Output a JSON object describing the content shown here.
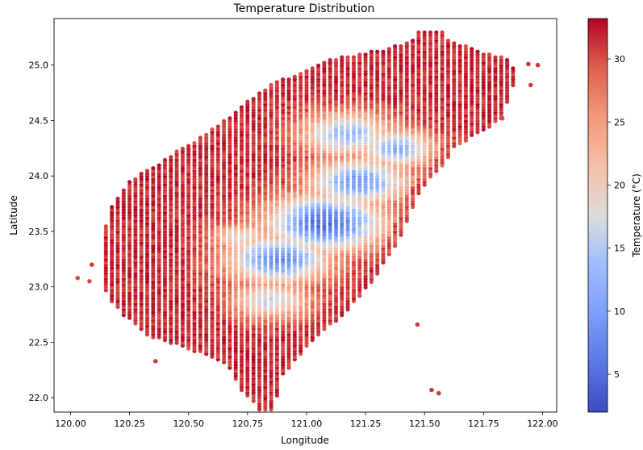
{
  "chart_data": {
    "type": "scatter",
    "title": "Temperature Distribution",
    "xlabel": "Longitude",
    "ylabel": "Latitude",
    "xlim": [
      119.93,
      122.06
    ],
    "ylim": [
      21.87,
      25.42
    ],
    "xticks": [
      120.0,
      120.25,
      120.5,
      120.75,
      121.0,
      121.25,
      121.5,
      121.75,
      122.0
    ],
    "xtick_labels": [
      "120.00",
      "120.25",
      "120.50",
      "120.75",
      "121.00",
      "121.25",
      "121.50",
      "121.75",
      "122.00"
    ],
    "yticks": [
      22.0,
      22.5,
      23.0,
      23.5,
      24.0,
      24.5,
      25.0
    ],
    "ytick_labels": [
      "22.0",
      "22.5",
      "23.0",
      "23.5",
      "24.0",
      "24.5",
      "25.0"
    ],
    "grid": false,
    "colormap": "coolwarm",
    "colorbar": {
      "label": "Temperature (°C)",
      "min": 2,
      "max": 33.2,
      "ticks": [
        5,
        10,
        15,
        20,
        25,
        30
      ],
      "tick_labels": [
        "5",
        "10",
        "15",
        "20",
        "25",
        "30"
      ]
    },
    "grid_step": {
      "lon": 0.025,
      "lat": 0.025
    },
    "extent_notes": "gridded points over Taiwan; temperature coolest (~4-12°C) along central mountain ridge, ~30-33°C on western and coastal lowlands",
    "land_rows": [
      {
        "lat": 21.95,
        "lon_min": 120.78,
        "lon_max": 120.87
      },
      {
        "lat": 22.05,
        "lon_min": 120.73,
        "lon_max": 120.88
      },
      {
        "lat": 22.15,
        "lon_min": 120.7,
        "lon_max": 120.88
      },
      {
        "lat": 22.25,
        "lon_min": 120.68,
        "lon_max": 120.92
      },
      {
        "lat": 22.35,
        "lon_min": 120.62,
        "lon_max": 120.96
      },
      {
        "lat": 22.45,
        "lon_min": 120.48,
        "lon_max": 121.0
      },
      {
        "lat": 22.55,
        "lon_min": 120.33,
        "lon_max": 121.04
      },
      {
        "lat": 22.65,
        "lon_min": 120.28,
        "lon_max": 121.1
      },
      {
        "lat": 22.75,
        "lon_min": 120.22,
        "lon_max": 121.16
      },
      {
        "lat": 22.85,
        "lon_min": 120.18,
        "lon_max": 121.2
      },
      {
        "lat": 22.95,
        "lon_min": 120.15,
        "lon_max": 121.24
      },
      {
        "lat": 23.05,
        "lon_min": 120.13,
        "lon_max": 121.28
      },
      {
        "lat": 23.15,
        "lon_min": 120.13,
        "lon_max": 121.31
      },
      {
        "lat": 23.25,
        "lon_min": 120.13,
        "lon_max": 121.34
      },
      {
        "lat": 23.35,
        "lon_min": 120.14,
        "lon_max": 121.37
      },
      {
        "lat": 23.45,
        "lon_min": 120.15,
        "lon_max": 121.4
      },
      {
        "lat": 23.55,
        "lon_min": 120.15,
        "lon_max": 121.42
      },
      {
        "lat": 23.65,
        "lon_min": 120.16,
        "lon_max": 121.44
      },
      {
        "lat": 23.75,
        "lon_min": 120.18,
        "lon_max": 121.46
      },
      {
        "lat": 23.85,
        "lon_min": 120.21,
        "lon_max": 121.48
      },
      {
        "lat": 23.95,
        "lon_min": 120.25,
        "lon_max": 121.51
      },
      {
        "lat": 24.05,
        "lon_min": 120.32,
        "lon_max": 121.56
      },
      {
        "lat": 24.15,
        "lon_min": 120.4,
        "lon_max": 121.6
      },
      {
        "lat": 24.25,
        "lon_min": 120.47,
        "lon_max": 121.62
      },
      {
        "lat": 24.35,
        "lon_min": 120.55,
        "lon_max": 121.7
      },
      {
        "lat": 24.45,
        "lon_min": 120.62,
        "lon_max": 121.78
      },
      {
        "lat": 24.55,
        "lon_min": 120.68,
        "lon_max": 121.85
      },
      {
        "lat": 24.65,
        "lon_min": 120.73,
        "lon_max": 121.85
      },
      {
        "lat": 24.75,
        "lon_min": 120.8,
        "lon_max": 121.87
      },
      {
        "lat": 24.85,
        "lon_min": 120.87,
        "lon_max": 121.88
      },
      {
        "lat": 24.95,
        "lon_min": 121.0,
        "lon_max": 121.88
      },
      {
        "lat": 25.05,
        "lon_min": 121.1,
        "lon_max": 121.86
      },
      {
        "lat": 25.15,
        "lon_min": 121.35,
        "lon_max": 121.7
      },
      {
        "lat": 25.25,
        "lon_min": 121.47,
        "lon_max": 121.58
      }
    ],
    "cold_zones": [
      {
        "lon": 121.08,
        "lat": 23.58,
        "r": 0.24,
        "t": 4.5
      },
      {
        "lon": 120.88,
        "lat": 23.25,
        "r": 0.21,
        "t": 8
      },
      {
        "lon": 121.22,
        "lat": 23.95,
        "r": 0.2,
        "t": 9
      },
      {
        "lon": 121.17,
        "lat": 24.38,
        "r": 0.19,
        "t": 13
      },
      {
        "lon": 121.38,
        "lat": 24.25,
        "r": 0.16,
        "t": 12
      },
      {
        "lon": 120.85,
        "lat": 22.88,
        "r": 0.16,
        "t": 16
      },
      {
        "lon": 120.72,
        "lat": 23.45,
        "r": 0.12,
        "t": 18
      }
    ],
    "outliers": [
      {
        "lon": 120.03,
        "lat": 23.08,
        "t": 30
      },
      {
        "lon": 120.08,
        "lat": 23.05,
        "t": 30
      },
      {
        "lon": 120.09,
        "lat": 23.2,
        "t": 31
      },
      {
        "lon": 120.36,
        "lat": 22.33,
        "t": 31
      },
      {
        "lon": 121.47,
        "lat": 22.66,
        "t": 31
      },
      {
        "lon": 121.53,
        "lat": 22.07,
        "t": 31
      },
      {
        "lon": 121.56,
        "lat": 22.04,
        "t": 31
      },
      {
        "lon": 121.95,
        "lat": 24.82,
        "t": 31
      },
      {
        "lon": 121.94,
        "lat": 25.01,
        "t": 31
      },
      {
        "lon": 121.98,
        "lat": 25.0,
        "t": 31
      },
      {
        "lon": 121.83,
        "lat": 24.52,
        "t": 30
      }
    ]
  }
}
